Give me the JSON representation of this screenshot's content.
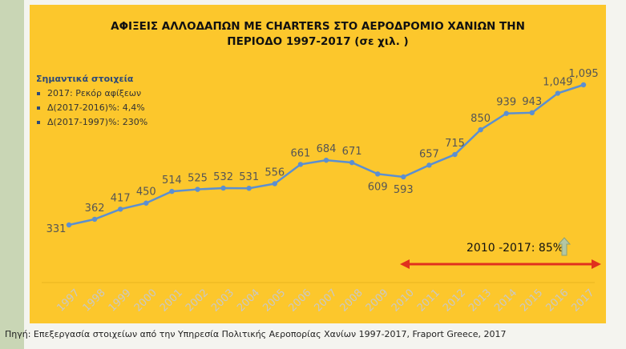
{
  "title_line1": "ΑΦΙΞΕΙΣ ΑΛΛΟΔΑΠΩΝ ΜΕ CHARTERS ΣΤΟ ΑΕΡΟΔΡΟΜΙΟ ΧΑΝΙΩΝ ΤΗΝ",
  "title_line2": "ΠΕΡΙΟΔΟ 1997-2017 (σε χιλ. )",
  "info": {
    "heading": "Σημαντικά στοιχεία",
    "items": [
      "2017: Ρεκόρ αφίξεων",
      "Δ(2017-2016)%: 4,4%",
      "Δ(2017-1997)%: 230%"
    ]
  },
  "callout": {
    "text": "2010 -2017: 85%",
    "arrow_color": "#e0301e",
    "up_arrow_color": "#b4c7a3"
  },
  "source": "Πηγή: Επεξεργασία στοιχείων από την Υπηρεσία Πολιτικής Αεροπορίας Χανίων 1997-2017, Fraport Greece, 2017",
  "colors": {
    "background": "#fcc72c",
    "line": "#5b8fd1",
    "marker": "#5b8fd1",
    "label": "#555555",
    "axis_label": "#c8c8c8"
  },
  "chart_data": {
    "type": "line",
    "categories": [
      "1997",
      "1998",
      "1999",
      "2000",
      "2001",
      "2002",
      "2003",
      "2004",
      "2005",
      "2006",
      "2007",
      "2008",
      "2009",
      "2010",
      "2011",
      "2012",
      "2013",
      "2014",
      "2015",
      "2016",
      "2017"
    ],
    "values": [
      331,
      362,
      417,
      450,
      514,
      525,
      532,
      531,
      556,
      661,
      684,
      671,
      609,
      593,
      657,
      715,
      850,
      939,
      943,
      1049,
      1095
    ],
    "labels": [
      "331",
      "362",
      "417",
      "450",
      "514",
      "525",
      "532",
      "531",
      "556",
      "661",
      "684",
      "671",
      "609",
      "593",
      "657",
      "715",
      "850",
      "939",
      "943",
      "1,049",
      "1,095"
    ],
    "ylim": [
      250,
      1150
    ],
    "grid": false,
    "legend": "none"
  }
}
